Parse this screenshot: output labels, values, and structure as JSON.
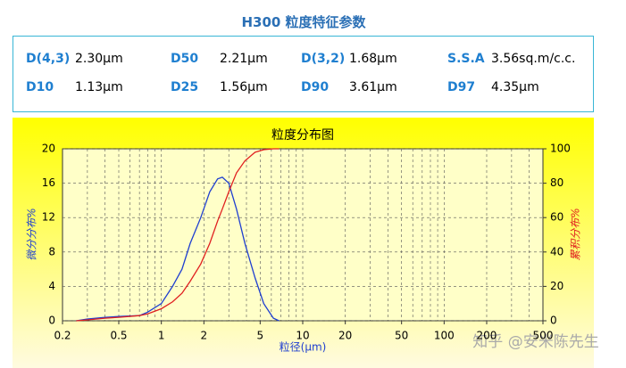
{
  "header": {
    "title": "H300 粒度特征参数"
  },
  "params": {
    "rows": [
      [
        [
          "D(4,3)",
          "2.30μm"
        ],
        [
          "D50",
          "2.21μm"
        ],
        [
          "D(3,2)",
          "1.68μm"
        ],
        [
          "S.S.A",
          "3.56sq.m/c.c."
        ]
      ],
      [
        [
          "D10",
          "1.13μm"
        ],
        [
          "D25",
          "1.56μm"
        ],
        [
          "D90",
          "3.61μm"
        ],
        [
          "D97",
          "4.35μm"
        ]
      ]
    ]
  },
  "chart_data": {
    "type": "line",
    "title": "粒度分布图",
    "x_label": "粒径(μm)",
    "y_label": "微分分布%",
    "y2_label": "累积分布%",
    "log_x": true,
    "grid": true,
    "x": [
      0.25,
      0.3,
      0.4,
      0.5,
      0.7,
      0.8,
      1,
      1.2,
      1.4,
      1.6,
      1.9,
      2.2,
      2.5,
      2.7,
      3,
      3.4,
      3.9,
      4.6,
      5.3,
      6.2,
      6.8
    ],
    "series": [
      {
        "color": "#1f3fd0",
        "values": [
          0,
          0.2,
          0.4,
          0.5,
          0.6,
          1,
          2,
          4,
          6,
          9,
          12,
          15,
          16.5,
          16.7,
          16,
          13,
          9,
          5,
          2,
          0.3,
          0
        ]
      },
      {
        "color": "#e02020",
        "axis": "y2",
        "values": [
          0,
          0.5,
          1.5,
          2,
          3,
          4,
          7,
          11,
          16,
          23,
          33,
          45,
          58,
          65,
          75,
          86,
          93,
          98,
          99.5,
          100,
          100
        ]
      }
    ],
    "xlim": [
      0.2,
      500
    ],
    "xticks": [
      0.2,
      0.5,
      1,
      2,
      5,
      10,
      20,
      50,
      100,
      200,
      500
    ],
    "ylim": [
      0,
      20
    ],
    "yticks": [
      0,
      4,
      8,
      12,
      16,
      20
    ],
    "y2lim": [
      0,
      100
    ],
    "y2ticks": [
      0,
      20,
      40,
      60,
      80,
      100
    ]
  },
  "watermark": "知乎 @安米陈先生"
}
